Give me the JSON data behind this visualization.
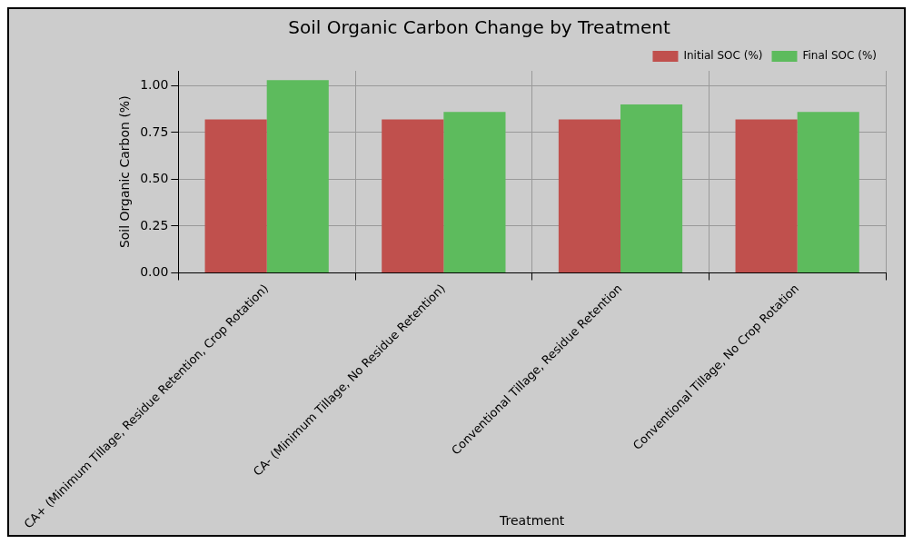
{
  "chart_data": {
    "type": "bar",
    "title": "Soil Organic Carbon Change by Treatment",
    "xlabel": "Treatment",
    "ylabel": "Soil Organic Carbon (%)",
    "categories": [
      "CA+ (Minimum Tillage, Residue Retention, Crop Rotation)",
      "CA- (Minimum Tillage, No Residue Retention)",
      "Conventional Tillage, Residue Retention",
      "Conventional Tillage, No Crop Rotation"
    ],
    "series": [
      {
        "name": "Initial SOC (%)",
        "color": "#c0504d",
        "values": [
          0.82,
          0.82,
          0.82,
          0.82
        ]
      },
      {
        "name": "Final SOC (%)",
        "color": "#5dbb5d",
        "values": [
          1.03,
          0.86,
          0.9,
          0.86
        ]
      }
    ],
    "ylim": [
      0,
      1.08
    ],
    "yticks": [
      {
        "value": 0,
        "label": "0.00"
      },
      {
        "value": 0.25,
        "label": "0.25"
      },
      {
        "value": 0.5,
        "label": "0.50"
      },
      {
        "value": 0.75,
        "label": "0.75"
      },
      {
        "value": 1,
        "label": "1.00"
      }
    ],
    "grid": true,
    "legend": "top right"
  }
}
